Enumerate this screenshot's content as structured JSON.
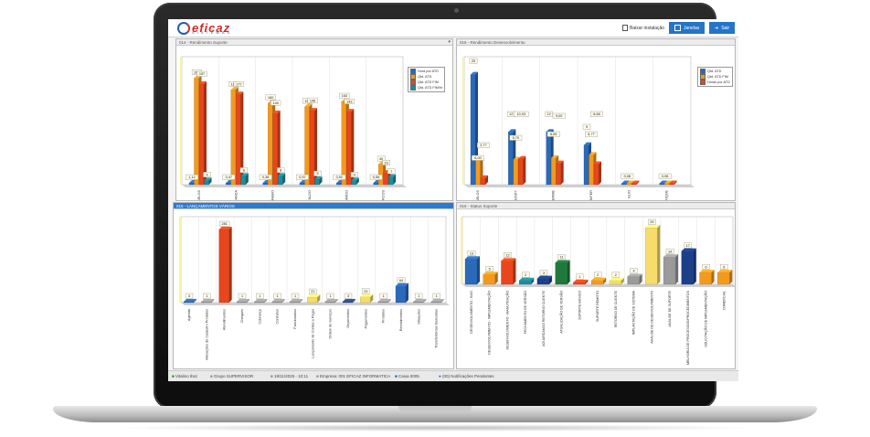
{
  "app": {
    "logo_text": "eficaz",
    "logo_sub": "SISTEMAS",
    "btn_install": "Baixar instalação",
    "btn_windows": "Janelas",
    "btn_exit": "Sair"
  },
  "panels": {
    "p1_title": "014 - Rendimento Suporte",
    "p2_title": "015 - Rendimento Desenvolvimento",
    "p3_title": "016 - LANÇAMENTOS VÁRIOS",
    "p4_title": "016 - Status Suporte"
  },
  "colors": {
    "blue": "#2a6ab8",
    "orange": "#f39a1e",
    "red": "#e8461c",
    "teal": "#1f8c9a",
    "yellow": "#f5dc6b",
    "green": "#1e7a3c",
    "darkblue": "#1c3f8a",
    "gray": "#9a9a9a",
    "navy": "#2c4a8c"
  },
  "chart_data": [
    {
      "type": "bar",
      "title": "014 - Rendimento Suporte",
      "categories": [
        "CARLOS",
        "FERNANDA",
        "FABIO",
        "FALDO",
        "LEONARDO",
        "MARCOS"
      ],
      "series": [
        {
          "name": "Hora por ATD",
          "values": [
            1.12,
            0.47,
            0.38,
            0.57,
            0.52,
            0.55
          ]
        },
        {
          "name": "Qtd. ATD",
          "values": [
            209,
            186,
            160,
            153,
            163,
            40
          ]
        },
        {
          "name": "Qtd. ATD FIM",
          "values": [
            197,
            177,
            140,
            145,
            143,
            23
          ]
        },
        {
          "name": "Qtd. ATD FIM/hr",
          "values": [
            4,
            8,
            8,
            5,
            4,
            7
          ]
        }
      ],
      "value_labels": [
        "1,12",
        "209",
        "197",
        "4",
        "0,47",
        "186",
        "177",
        "8",
        "0,38",
        "160",
        "140",
        "8",
        "0,57",
        "153",
        "145",
        "5",
        "0,52",
        "163",
        "143",
        "4",
        "0,55",
        "40",
        "23",
        "7"
      ]
    },
    {
      "type": "bar",
      "title": "015 - Rendimento Desenvolvimento",
      "categories": [
        "JEAN CARLOS",
        "KENDY",
        "GUILHERME",
        "JENIFER",
        "ELIO",
        "HENRIQUE"
      ],
      "series": [
        {
          "name": "Qtd. ATD",
          "values": [
            25,
            12,
            12,
            9,
            0,
            0
          ]
        },
        {
          "name": "Qtd. ATD FIM",
          "values": [
            6,
            5.7,
            6.05,
            6.77,
            0.08,
            0.08
          ]
        },
        {
          "name": "Horas por ATD",
          "values": [
            2.77,
            10.93,
            9.0,
            8.66,
            0.08,
            0.08
          ]
        }
      ],
      "value_labels": [
        "25",
        "2,77",
        "12",
        "10,93",
        "12",
        "9,00",
        "9",
        "8,66",
        "0,08",
        "0,08",
        "6,00",
        "5,70",
        "6,05",
        "6,77"
      ]
    },
    {
      "type": "bar",
      "title": "016 - LANÇAMENTOS VÁRIOS",
      "categories": [
        "Agenda",
        "Alterações de Cadastro Produtos",
        "Atendimentos",
        "Cheques",
        "Cobrança",
        "Contratos",
        "Funcionarios",
        "Lançamento de Contas a Pagar",
        "Ordem de Serviços",
        "Orçamentos",
        "Pagamentos",
        "Produtos",
        "Recebimentos",
        "Situações",
        "Transferências Bancárias"
      ],
      "values": [
        3,
        1,
        281,
        1,
        1,
        1,
        1,
        21,
        1,
        3,
        22,
        1,
        64,
        1,
        1
      ],
      "value_labels": [
        "3",
        "1",
        "281",
        "1",
        "1",
        "1",
        "1",
        "21",
        "1",
        "3",
        "22",
        "1",
        "64",
        "1",
        "1"
      ]
    },
    {
      "type": "bar",
      "title": "016 - Status Suporte",
      "categories": [
        "DESENVOLVIMENTO - BUG",
        "DESENVOLVIMENTO - IMPLEMENTAÇÃO",
        "DESENVOLVIMENTO - MANUTENÇÃO",
        "FECHAMENTO DE VERSÃO",
        "AGUARDANDO RETORNO CLIENTE",
        "ATUALIZAÇÃO DE VERSÃO",
        "SUPORTE BÁSICO",
        "SUPORTE REMOTO",
        "RETORNO DE CLIENTE",
        "IMPLANTAÇÃO DE SISTEMA",
        "ANÁLISE DE DESENVOLVIMENTO",
        "ANÁLISE DE SUPORTE",
        "MELHORIA DE PROCESSOS/PROCEDIMENTOS",
        "SOLICITAÇÃO DE IMPLEMENTAÇÃO",
        "COMERCIAL"
      ],
      "values": [
        13,
        5,
        12,
        2,
        3,
        11,
        1,
        2,
        2,
        4,
        29,
        14,
        17,
        6,
        6
      ],
      "value_labels": [
        "13",
        "5",
        "12",
        "2",
        "3",
        "11",
        "1",
        "2",
        "2",
        "4",
        "29",
        "14",
        "17",
        "6",
        "6"
      ]
    }
  ],
  "status": {
    "user": "Vitalino Ibsz",
    "group": "Grupo SUPERVISOR",
    "datetime": "18/11/2025 - 10:11",
    "company": "Empresa: 001 EFICAZ INFORMATICA",
    "cashbox": "Caixa 0005",
    "notifications": "(00) Notificações Pendentes"
  }
}
